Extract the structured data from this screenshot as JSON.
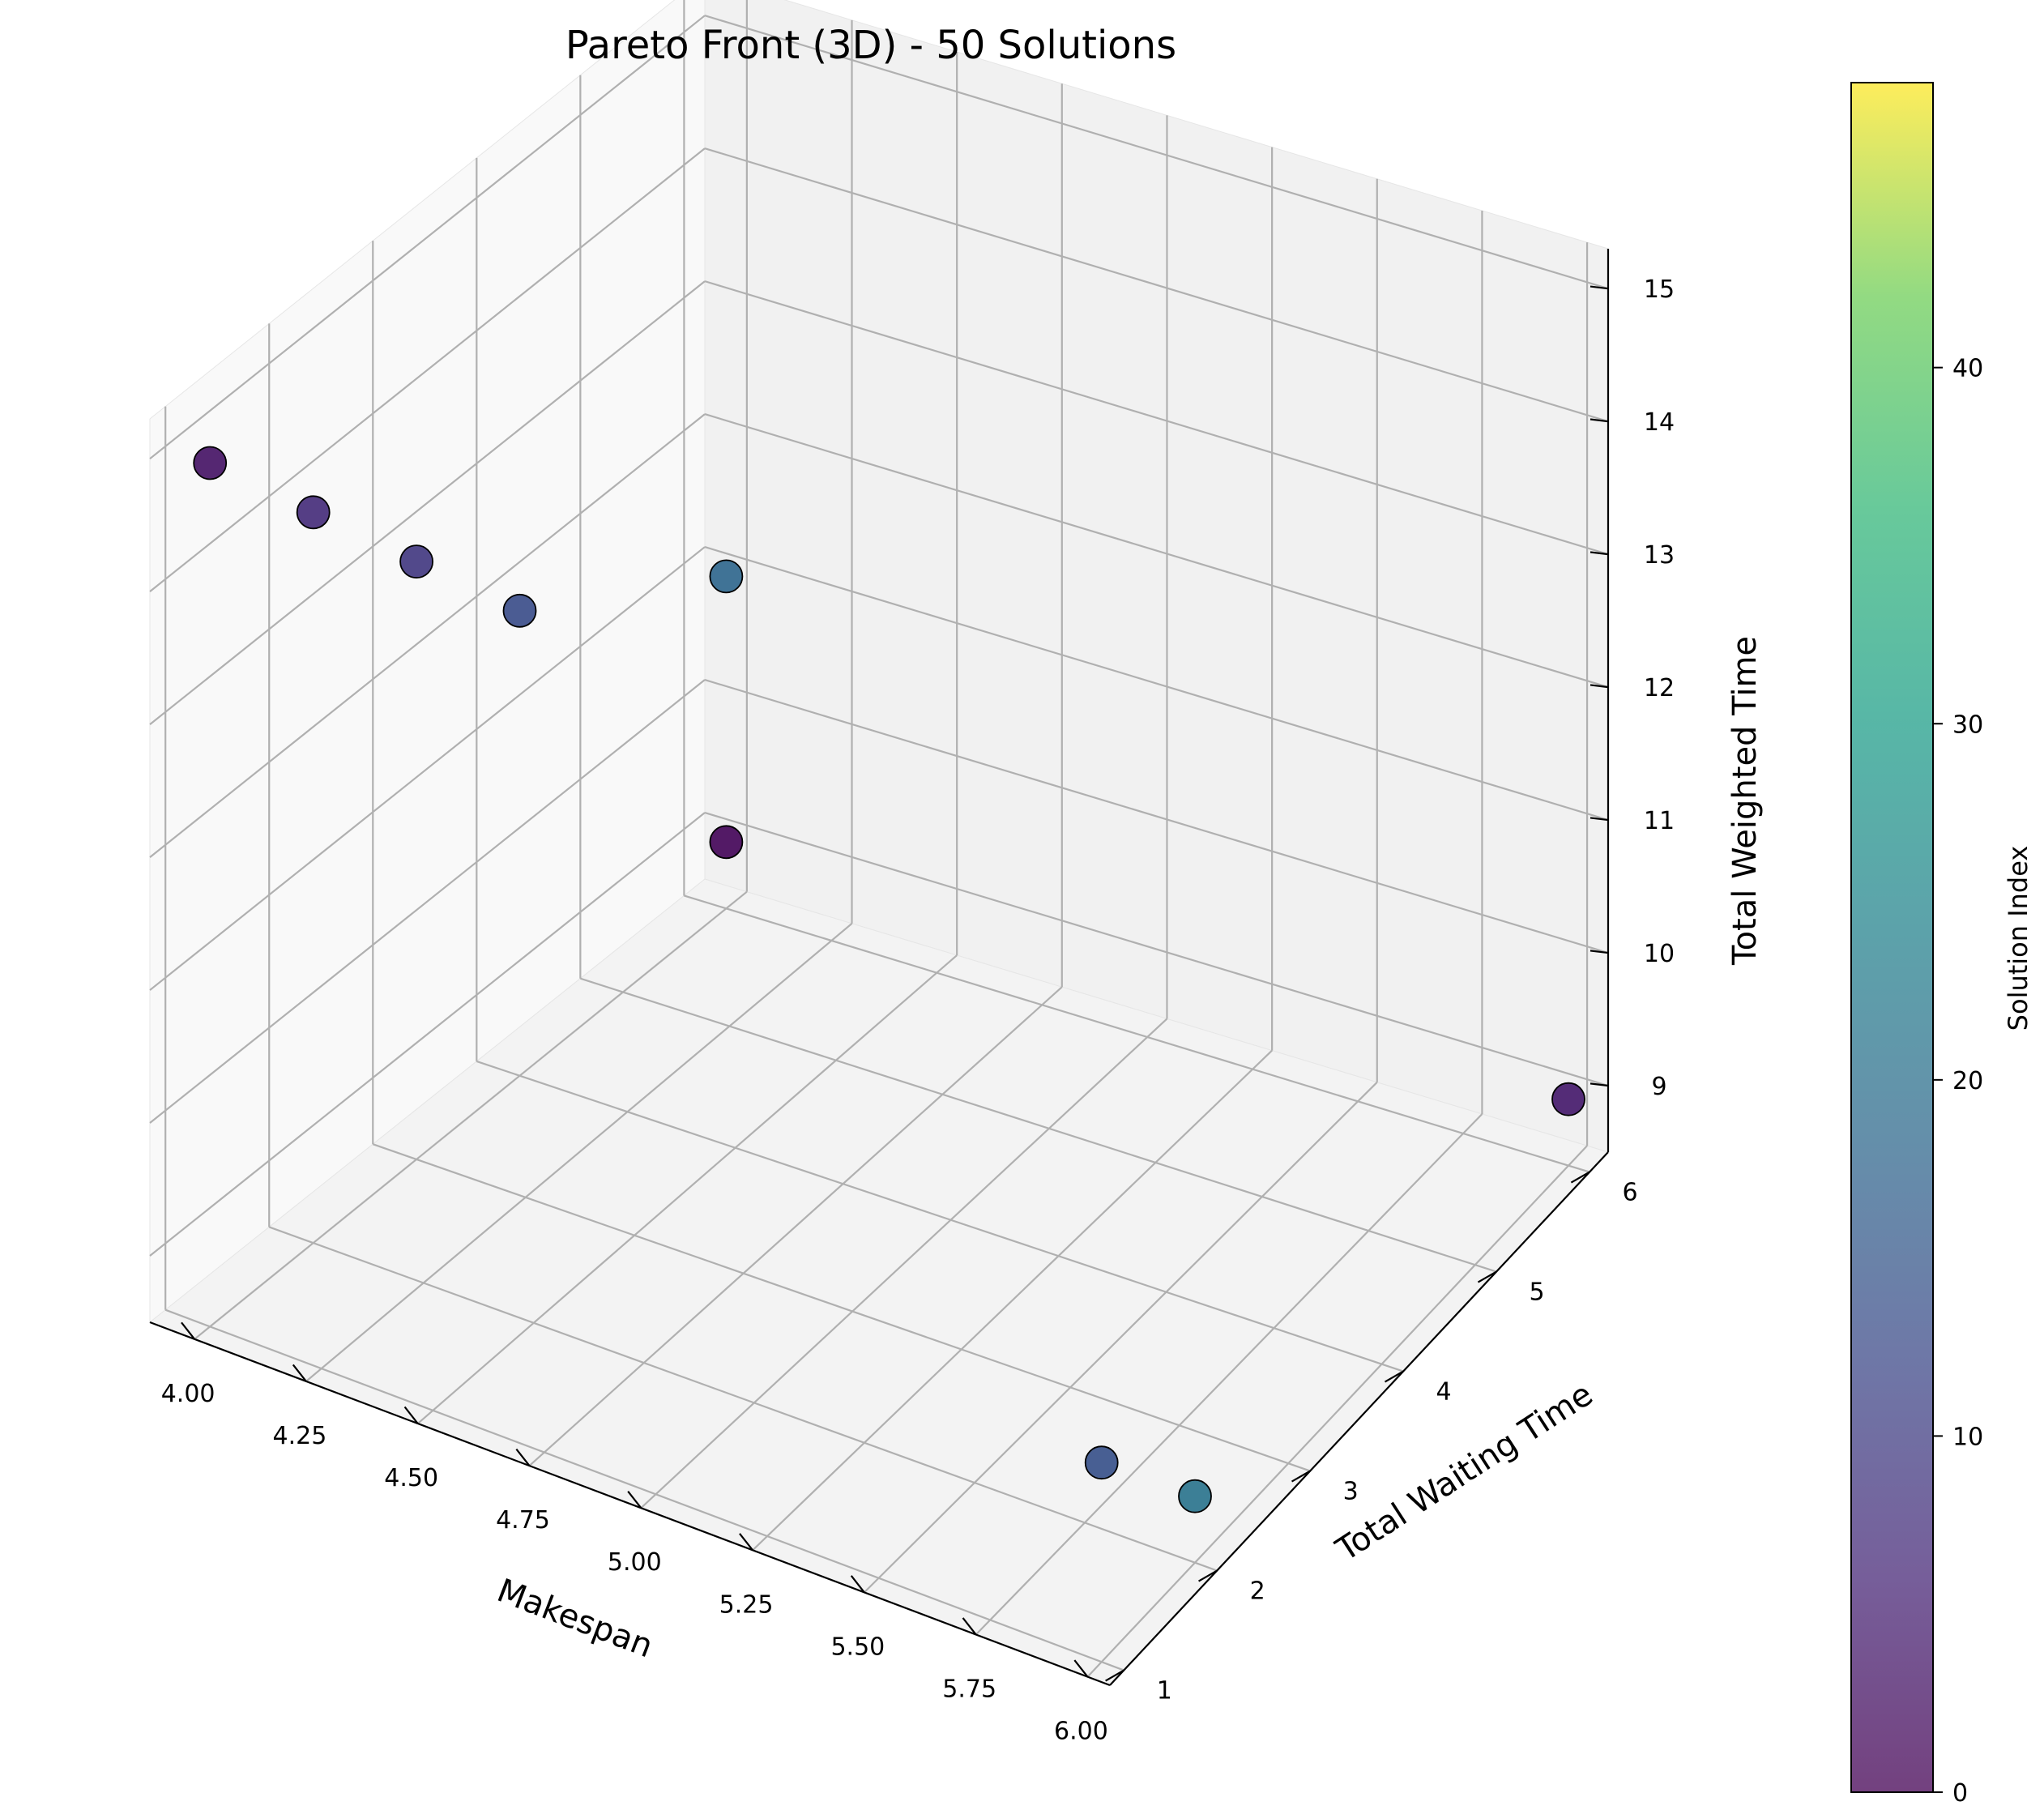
{
  "chart_data": {
    "type": "scatter",
    "projection": "3d",
    "title": "Pareto Front (3D) - 50 Solutions",
    "xlabel": "Makespan",
    "ylabel": "Total Waiting Time",
    "zlabel": "Total Weighted Time",
    "xlim": [
      3.9,
      6.05
    ],
    "ylim": [
      0.85,
      6.2
    ],
    "zlim": [
      8.5,
      15.3
    ],
    "x_ticks": [
      "4.00",
      "4.25",
      "4.50",
      "4.75",
      "5.00",
      "5.25",
      "5.50",
      "5.75",
      "6.00"
    ],
    "y_ticks": [
      "1",
      "2",
      "3",
      "4",
      "5",
      "6"
    ],
    "z_ticks": [
      "9",
      "10",
      "11",
      "12",
      "13",
      "14",
      "15"
    ],
    "grid": true,
    "colormap": "viridis",
    "colorbar": {
      "label": "Solution Index",
      "range": [
        0,
        48
      ],
      "ticks": [
        "0",
        "10",
        "20",
        "30",
        "40"
      ]
    },
    "points": [
      {
        "x": 4.0,
        "y": 1.0,
        "z": 15.0,
        "c": 3
      },
      {
        "x": 4.0,
        "y": 2.0,
        "z": 14.0,
        "c": 7
      },
      {
        "x": 4.0,
        "y": 3.0,
        "z": 13.0,
        "c": 9
      },
      {
        "x": 4.0,
        "y": 4.0,
        "z": 12.0,
        "c": 13
      },
      {
        "x": 4.0,
        "y": 6.0,
        "z": 11.0,
        "c": 18
      },
      {
        "x": 4.0,
        "y": 6.0,
        "z": 9.0,
        "c": 1
      },
      {
        "x": 6.0,
        "y": 6.0,
        "z": 9.0,
        "c": 4
      },
      {
        "x": 6.0,
        "y": 2.0,
        "z": 9.0,
        "c": 21
      },
      {
        "x": 6.0,
        "y": 1.0,
        "z": 10.0,
        "c": 14
      }
    ]
  }
}
